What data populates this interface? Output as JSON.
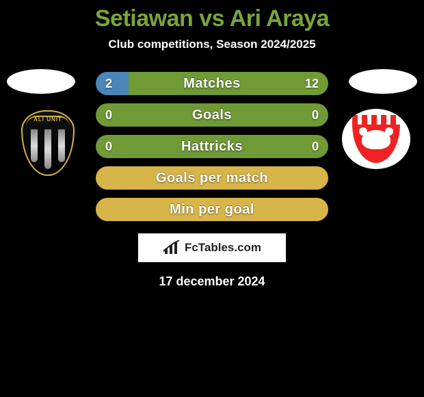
{
  "title": {
    "text": "Setiawan vs Ari Araya",
    "color": "#78a63b",
    "fontsize": 34
  },
  "subtitle": {
    "text": "Club competitions, Season 2024/2025",
    "color": "#ffffff",
    "fontsize": 17
  },
  "date": {
    "text": "17 december 2024",
    "color": "#ffffff",
    "fontsize": 18
  },
  "brand": {
    "text": "FcTables.com",
    "fontsize": 17
  },
  "background_color": "#000000",
  "oval_color": "#ffffff",
  "left_club": {
    "name": "Bali United",
    "shield_text": "ALI UNIT"
  },
  "right_club": {
    "name": "Madura United"
  },
  "bar_style": {
    "height": 34,
    "radius": 17,
    "fontsize": 20,
    "value_fontsize": 18,
    "label_color": "#ffffff",
    "value_color": "#ffffff",
    "colors": {
      "green": "#6f9a35",
      "blue": "#4a86b8",
      "yellow": "#d8b549"
    }
  },
  "bars": [
    {
      "label": "Matches",
      "left": "2",
      "right": "12",
      "left_color": "#4a86b8",
      "right_color": "#6f9a35",
      "left_pct": 14
    },
    {
      "label": "Goals",
      "left": "0",
      "right": "0",
      "left_color": "#6f9a35",
      "right_color": "#6f9a35",
      "left_pct": 50
    },
    {
      "label": "Hattricks",
      "left": "0",
      "right": "0",
      "left_color": "#6f9a35",
      "right_color": "#6f9a35",
      "left_pct": 50
    },
    {
      "label": "Goals per match",
      "left": "",
      "right": "",
      "left_color": "#d8b549",
      "right_color": "#d8b549",
      "left_pct": 50
    },
    {
      "label": "Min per goal",
      "left": "",
      "right": "",
      "left_color": "#d8b549",
      "right_color": "#d8b549",
      "left_pct": 50
    }
  ]
}
